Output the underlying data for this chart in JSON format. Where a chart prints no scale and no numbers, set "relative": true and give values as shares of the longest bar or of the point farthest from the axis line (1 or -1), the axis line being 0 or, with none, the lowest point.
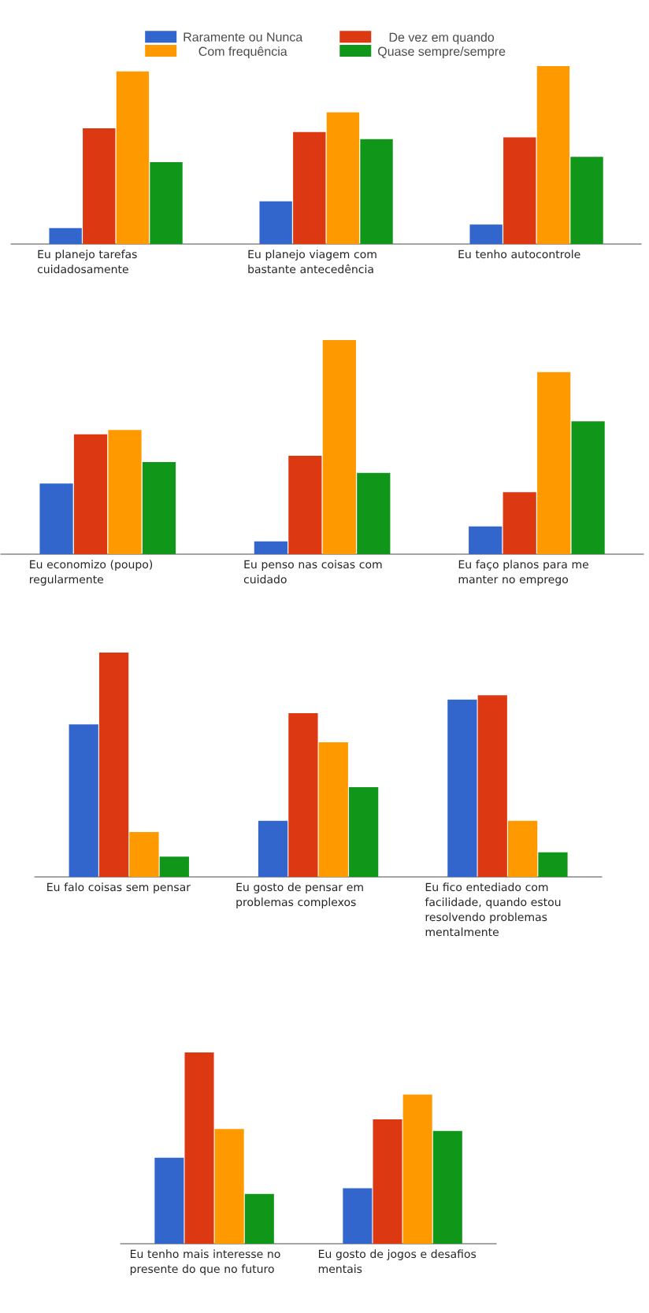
{
  "chart_data": [
    {
      "type": "bar",
      "relative": true,
      "legend": "top",
      "categories": [
        "Eu planejo tarefas cuidadosamente",
        "Eu planejo viagem com bastante antecedência",
        "Eu tenho autocontrole"
      ],
      "series": [
        {
          "name": "Raramente ou Nunca",
          "color": "#3366cc",
          "values": [
            0.09,
            0.24,
            0.11
          ]
        },
        {
          "name": "De vez em quando",
          "color": "#dc3912",
          "values": [
            0.65,
            0.63,
            0.6
          ]
        },
        {
          "name": "Com frequência",
          "color": "#ff9900",
          "values": [
            0.97,
            0.74,
            1
          ]
        },
        {
          "name": "Quase sempre/sempre",
          "color": "#109618",
          "values": [
            0.46,
            0.59,
            0.49
          ]
        }
      ]
    },
    {
      "type": "bar",
      "relative": true,
      "categories": [
        "Eu economizo (poupo) regularmente",
        "Eu penso nas coisas com cuidado",
        "Eu faço planos para me manter no emprego"
      ],
      "series": [
        {
          "color": "#3366cc",
          "values": [
            0.33,
            0.06,
            0.13
          ]
        },
        {
          "color": "#dc3912",
          "values": [
            0.56,
            0.46,
            0.29
          ]
        },
        {
          "color": "#ff9900",
          "values": [
            0.58,
            1,
            0.85
          ]
        },
        {
          "color": "#109618",
          "values": [
            0.43,
            0.38,
            0.62
          ]
        }
      ]
    },
    {
      "type": "bar",
      "relative": true,
      "categories": [
        "Eu falo coisas sem pensar",
        "Eu gosto de pensar em problemas complexos",
        "Eu fico entediado com facilidade, quando estou resolvendo problemas mentalmente"
      ],
      "series": [
        {
          "color": "#3366cc",
          "values": [
            0.68,
            0.25,
            0.79
          ]
        },
        {
          "color": "#dc3912",
          "values": [
            1,
            0.73,
            0.81
          ]
        },
        {
          "color": "#ff9900",
          "values": [
            0.2,
            0.6,
            0.25
          ]
        },
        {
          "color": "#109618",
          "values": [
            0.09,
            0.4,
            0.11
          ]
        }
      ]
    },
    {
      "type": "bar",
      "relative": true,
      "categories": [
        "Eu tenho mais interesse no presente do que no futuro",
        "Eu gosto de jogos e desafios mentais"
      ],
      "series": [
        {
          "color": "#3366cc",
          "values": [
            0.45,
            0.29
          ]
        },
        {
          "color": "#dc3912",
          "values": [
            1,
            0.65
          ]
        },
        {
          "color": "#ff9900",
          "values": [
            0.6,
            0.78
          ]
        },
        {
          "color": "#109618",
          "values": [
            0.26,
            0.59
          ]
        }
      ]
    }
  ]
}
